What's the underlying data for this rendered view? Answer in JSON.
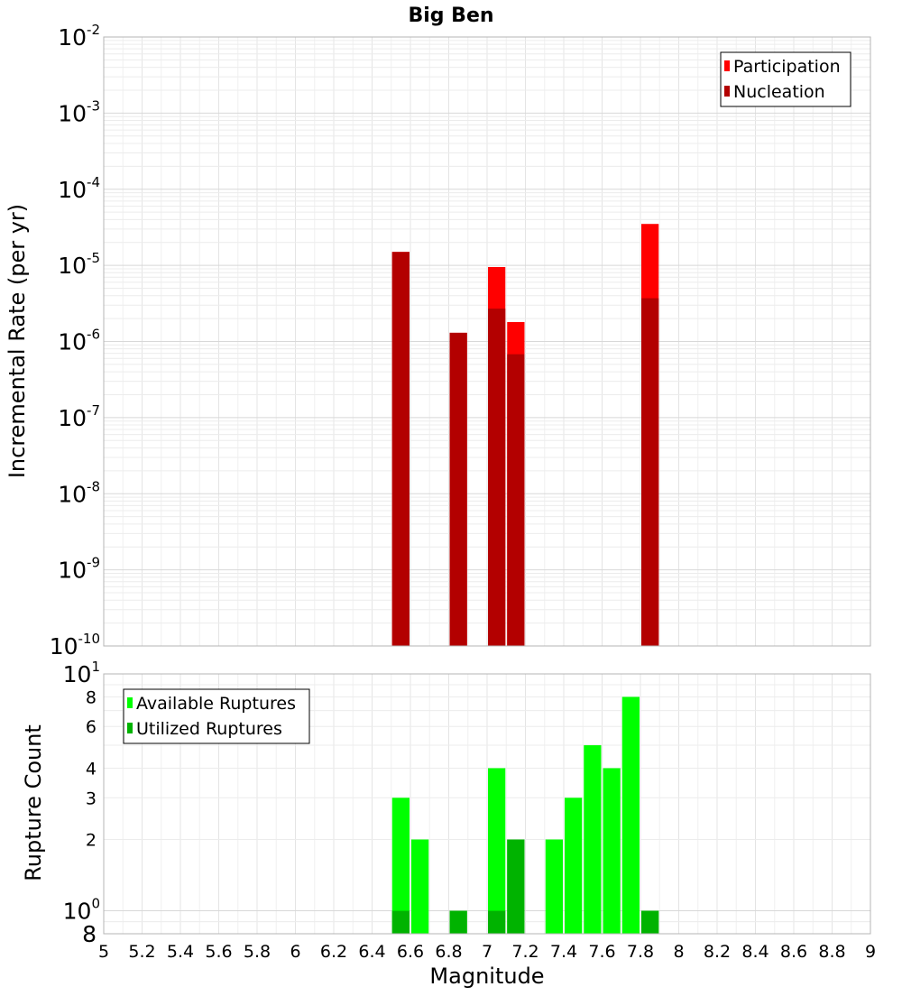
{
  "chart_data": [
    {
      "type": "bar",
      "title": "Big Ben",
      "xlabel": "",
      "ylabel": "Incremental Rate (per yr)",
      "yscale": "log",
      "xlim": [
        5,
        9
      ],
      "ylim": [
        1e-10,
        0.01
      ],
      "y_tick_labels": [
        {
          "value": 0.01,
          "base": "10",
          "exp": "-2"
        },
        {
          "value": 0.001,
          "base": "10",
          "exp": "-3"
        },
        {
          "value": 0.0001,
          "base": "10",
          "exp": "-4"
        },
        {
          "value": 1e-05,
          "base": "10",
          "exp": "-5"
        },
        {
          "value": 1e-06,
          "base": "10",
          "exp": "-6"
        },
        {
          "value": 1e-07,
          "base": "10",
          "exp": "-7"
        },
        {
          "value": 1e-08,
          "base": "10",
          "exp": "-8"
        },
        {
          "value": 1e-09,
          "base": "10",
          "exp": "-9"
        },
        {
          "value": 1e-10,
          "base": "10",
          "exp": "-10"
        }
      ],
      "legend": {
        "position": "top-right"
      },
      "series": [
        {
          "name": "Participation",
          "color": "#ff0000",
          "x": [
            6.55,
            6.85,
            7.05,
            7.15,
            7.85
          ],
          "values": [
            1.5e-05,
            1.3e-06,
            9.5e-06,
            1.8e-06,
            3.5e-05
          ]
        },
        {
          "name": "Nucleation",
          "color": "#b30000",
          "x": [
            6.55,
            6.85,
            7.05,
            7.15,
            7.85
          ],
          "values": [
            1.5e-05,
            1.3e-06,
            2.7e-06,
            6.8e-07,
            3.7e-06
          ]
        }
      ],
      "grid": true
    },
    {
      "type": "bar",
      "title": "",
      "xlabel": "Magnitude",
      "ylabel": "Rupture Count",
      "yscale": "log",
      "xlim": [
        5,
        9
      ],
      "ylim": [
        0.8,
        10
      ],
      "x_ticks": [
        "5",
        "5.2",
        "5.4",
        "5.6",
        "5.8",
        "6",
        "6.2",
        "6.4",
        "6.6",
        "6.8",
        "7",
        "7.2",
        "7.4",
        "7.6",
        "7.8",
        "8",
        "8.2",
        "8.4",
        "8.6",
        "8.8",
        "9"
      ],
      "y_tick_labels": [
        {
          "value": 10,
          "base": "10",
          "exp": "1"
        },
        {
          "value": 8,
          "base": "8",
          "exp": ""
        },
        {
          "value": 6,
          "base": "6",
          "exp": ""
        },
        {
          "value": 4,
          "base": "4",
          "exp": ""
        },
        {
          "value": 3,
          "base": "3",
          "exp": ""
        },
        {
          "value": 2,
          "base": "2",
          "exp": ""
        },
        {
          "value": 1,
          "base": "10",
          "exp": "0"
        },
        {
          "value": 0.8,
          "base": "8",
          "exp": ""
        }
      ],
      "legend": {
        "position": "top-left"
      },
      "series": [
        {
          "name": "Available Ruptures",
          "color": "#00ff00",
          "x": [
            6.55,
            6.65,
            6.85,
            7.05,
            7.15,
            7.35,
            7.45,
            7.55,
            7.65,
            7.75,
            7.85
          ],
          "values": [
            3,
            2,
            1,
            4,
            2,
            2,
            3,
            5,
            4,
            8,
            1
          ]
        },
        {
          "name": "Utilized Ruptures",
          "color": "#00b300",
          "x": [
            6.55,
            6.85,
            7.05,
            7.15,
            7.85
          ],
          "values": [
            1,
            1,
            1,
            2,
            1
          ]
        }
      ],
      "grid": true
    }
  ]
}
